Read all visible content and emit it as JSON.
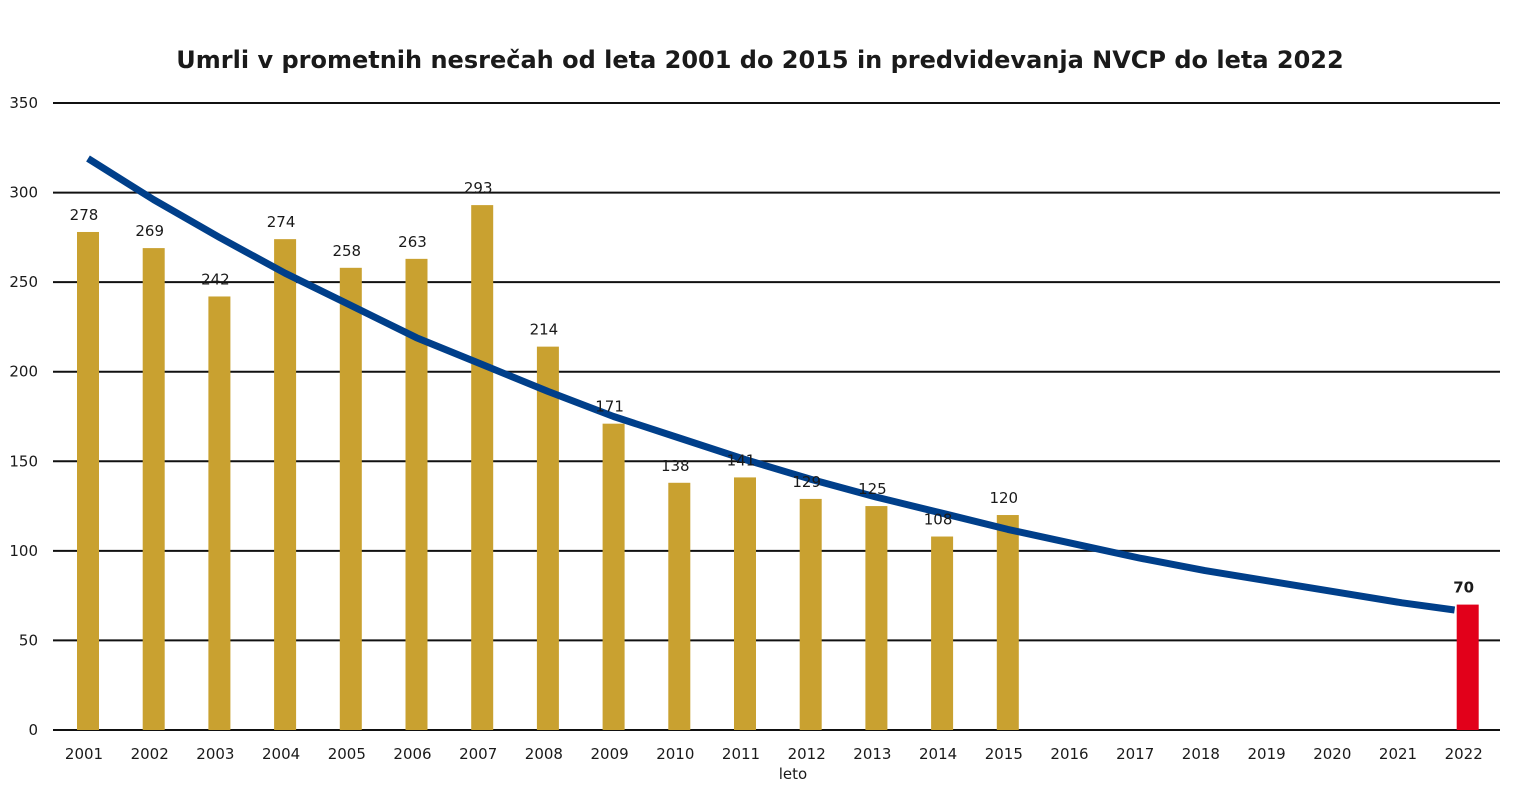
{
  "chart_data": {
    "type": "bar",
    "title": "Umrli v prometnih nesrečah od leta 2001 do 2015 in predvidevanja NVCP do leta 2022",
    "xlabel": "leto",
    "ylabel": "",
    "ylim": [
      0,
      350
    ],
    "yticks": [
      "0",
      "50",
      "100",
      "150",
      "200",
      "250",
      "300",
      "350"
    ],
    "grid": true,
    "categories": [
      "2001",
      "2002",
      "2003",
      "2004",
      "2005",
      "2006",
      "2007",
      "2008",
      "2009",
      "2010",
      "2011",
      "2012",
      "2013",
      "2014",
      "2015",
      "2016",
      "2017",
      "2018",
      "2019",
      "2020",
      "2021",
      "2022"
    ],
    "values": [
      278,
      269,
      242,
      274,
      258,
      263,
      293,
      214,
      171,
      138,
      141,
      129,
      125,
      108,
      120,
      null,
      null,
      null,
      null,
      null,
      null,
      70
    ],
    "bar_colors": {
      "actual": "#c9a130",
      "target": "#e2001a"
    },
    "target_label_bold": true,
    "trend": {
      "type": "line",
      "color": "#003f8a",
      "x": [
        2001,
        2002,
        2003,
        2004,
        2005,
        2006,
        2007,
        2008,
        2009,
        2010,
        2011,
        2012,
        2013,
        2014,
        2015,
        2016,
        2017,
        2018,
        2019,
        2020,
        2021,
        2021.8
      ],
      "y": [
        319,
        296,
        275,
        255,
        237,
        219,
        204,
        189,
        175,
        163,
        151,
        140,
        130,
        121,
        112,
        104,
        96,
        89,
        83,
        77,
        71,
        67
      ]
    }
  }
}
